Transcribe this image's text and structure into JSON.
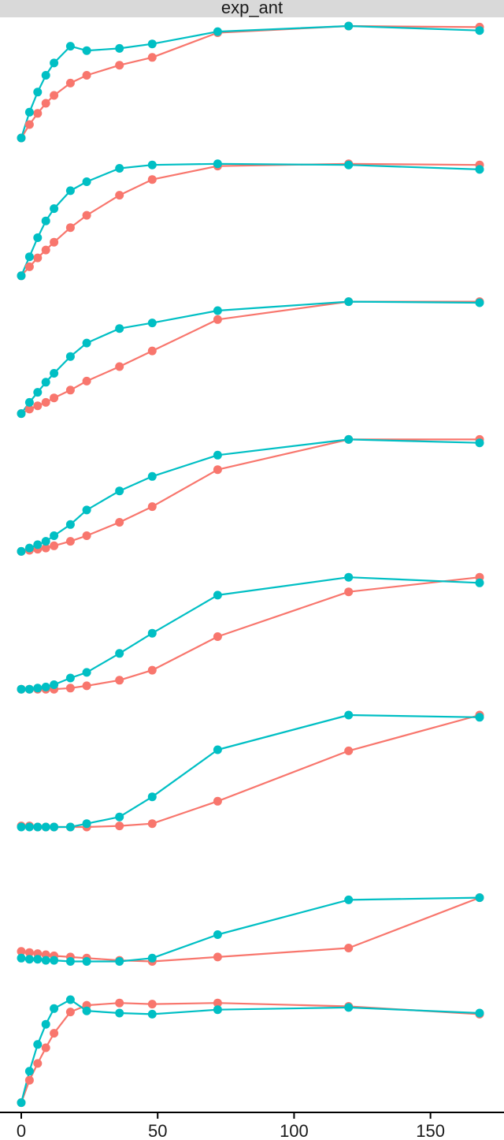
{
  "chart_data": {
    "type": "line",
    "facet_label": "exp_ant",
    "xlabel": "",
    "ylabel": "",
    "xlim": [
      -3,
      175
    ],
    "x_ticks": [
      0,
      50,
      100,
      150
    ],
    "x_tick_labels": [
      "0",
      "50",
      "100",
      "150"
    ],
    "grid": false,
    "legend": "none",
    "x": [
      0,
      3,
      6,
      9,
      12,
      18,
      24,
      36,
      48,
      72,
      120,
      168
    ],
    "panels": [
      {
        "series": [
          {
            "color": "#f8766d",
            "values": [
              0,
              0.12,
              0.22,
              0.31,
              0.38,
              0.49,
              0.56,
              0.65,
              0.72,
              0.94,
              1.0,
              0.99
            ]
          },
          {
            "color": "#00bfc4",
            "values": [
              0,
              0.23,
              0.41,
              0.56,
              0.67,
              0.82,
              0.78,
              0.8,
              0.84,
              0.95,
              1.0,
              0.96
            ]
          }
        ]
      },
      {
        "series": [
          {
            "color": "#f8766d",
            "values": [
              0,
              0.08,
              0.16,
              0.23,
              0.3,
              0.43,
              0.54,
              0.72,
              0.86,
              0.98,
              1.0,
              0.99
            ]
          },
          {
            "color": "#00bfc4",
            "values": [
              0,
              0.17,
              0.34,
              0.49,
              0.6,
              0.76,
              0.84,
              0.96,
              0.99,
              1.0,
              0.99,
              0.95
            ]
          }
        ]
      },
      {
        "series": [
          {
            "color": "#f8766d",
            "values": [
              0,
              0.04,
              0.07,
              0.1,
              0.14,
              0.21,
              0.29,
              0.42,
              0.56,
              0.84,
              1.0,
              1.0
            ]
          },
          {
            "color": "#00bfc4",
            "values": [
              0,
              0.1,
              0.19,
              0.28,
              0.36,
              0.51,
              0.63,
              0.76,
              0.81,
              0.92,
              1.0,
              0.99
            ]
          }
        ]
      },
      {
        "series": [
          {
            "color": "#f8766d",
            "values": [
              0,
              0.01,
              0.02,
              0.03,
              0.05,
              0.09,
              0.14,
              0.26,
              0.4,
              0.73,
              1.0,
              1.0
            ]
          },
          {
            "color": "#00bfc4",
            "values": [
              0,
              0.03,
              0.06,
              0.09,
              0.14,
              0.24,
              0.37,
              0.54,
              0.67,
              0.86,
              1.0,
              0.97
            ]
          }
        ]
      },
      {
        "series": [
          {
            "color": "#f8766d",
            "values": [
              0,
              0.0,
              0.0,
              0.0,
              0.0,
              0.01,
              0.03,
              0.08,
              0.17,
              0.47,
              0.87,
              1.0
            ]
          },
          {
            "color": "#00bfc4",
            "values": [
              0,
              0.0,
              0.01,
              0.02,
              0.04,
              0.1,
              0.15,
              0.32,
              0.5,
              0.84,
              1.0,
              0.95
            ]
          }
        ]
      },
      {
        "series": [
          {
            "color": "#f8766d",
            "values": [
              0.01,
              0.01,
              0.0,
              0.0,
              0.0,
              0.0,
              0.0,
              0.01,
              0.03,
              0.23,
              0.68,
              1.0
            ]
          },
          {
            "color": "#00bfc4",
            "values": [
              0.0,
              0.0,
              0.0,
              0.0,
              0.0,
              0.0,
              0.03,
              0.09,
              0.27,
              0.69,
              1.0,
              0.98
            ]
          }
        ]
      },
      {
        "series": [
          {
            "color": "#f8766d",
            "values": [
              0.12,
              0.11,
              0.1,
              0.09,
              0.08,
              0.07,
              0.06,
              0.04,
              0.03,
              0.07,
              0.15,
              0.6
            ]
          },
          {
            "color": "#00bfc4",
            "values": [
              0.06,
              0.05,
              0.05,
              0.04,
              0.04,
              0.03,
              0.03,
              0.03,
              0.06,
              0.27,
              0.58,
              0.6
            ]
          }
        ]
      },
      {
        "series": [
          {
            "color": "#f8766d",
            "values": [
              0,
              0.2,
              0.35,
              0.49,
              0.62,
              0.81,
              0.87,
              0.89,
              0.88,
              0.89,
              0.86,
              0.79
            ]
          },
          {
            "color": "#00bfc4",
            "values": [
              0,
              0.28,
              0.52,
              0.7,
              0.84,
              0.92,
              0.82,
              0.8,
              0.79,
              0.83,
              0.85,
              0.8
            ]
          }
        ]
      }
    ]
  }
}
